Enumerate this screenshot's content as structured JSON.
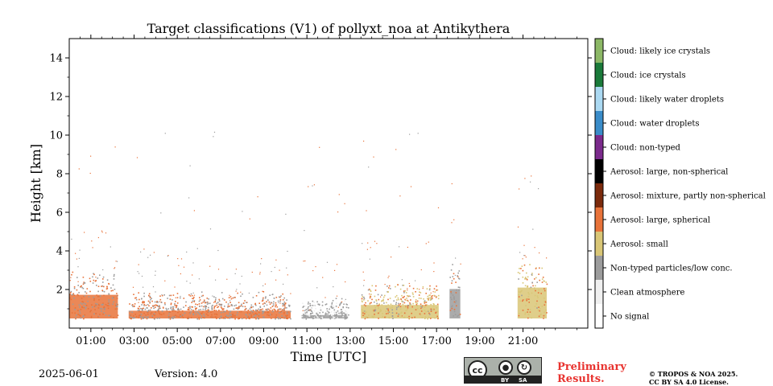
{
  "title": "Target classifications (V1) of pollyxt_noa at Antikythera",
  "footer": {
    "date": "2025-06-01",
    "version": "Version: 4.0",
    "preliminary": [
      "Preliminary",
      "Results."
    ],
    "copyright": [
      "© TROPOS & NOA 2025.",
      "CC BY SA 4.0 License."
    ],
    "license_badge": {
      "cc": "cc",
      "by": "BY",
      "sa": "SA"
    }
  },
  "chart_data": {
    "type": "heatmap",
    "title": "Target classifications (V1) of pollyxt_noa at Antikythera",
    "xlabel": "Time [UTC]",
    "ylabel": "Height [km]",
    "xlim_hours": [
      0,
      24
    ],
    "ylim_km": [
      0,
      15
    ],
    "xticks": [
      {
        "h": 1,
        "label": "01:00"
      },
      {
        "h": 3,
        "label": "03:00"
      },
      {
        "h": 5,
        "label": "05:00"
      },
      {
        "h": 7,
        "label": "07:00"
      },
      {
        "h": 9,
        "label": "09:00"
      },
      {
        "h": 11,
        "label": "11:00"
      },
      {
        "h": 13,
        "label": "13:00"
      },
      {
        "h": 15,
        "label": "15:00"
      },
      {
        "h": 17,
        "label": "17:00"
      },
      {
        "h": 19,
        "label": "19:00"
      },
      {
        "h": 21,
        "label": "21:00"
      }
    ],
    "yticks": [
      {
        "v": 2,
        "label": "2"
      },
      {
        "v": 4,
        "label": "4"
      },
      {
        "v": 6,
        "label": "6"
      },
      {
        "v": 8,
        "label": "8"
      },
      {
        "v": 10,
        "label": "10"
      },
      {
        "v": 12,
        "label": "12"
      },
      {
        "v": 14,
        "label": "14"
      }
    ],
    "classes": [
      {
        "value": 0,
        "label": "No signal",
        "color": "#ffffff"
      },
      {
        "value": 1,
        "label": "Clean atmosphere",
        "color": "#f0f0f0"
      },
      {
        "value": 2,
        "label": "Non-typed particles/low conc.",
        "color": "#9c9c9c"
      },
      {
        "value": 3,
        "label": "Aerosol: small",
        "color": "#d9c676"
      },
      {
        "value": 4,
        "label": "Aerosol: large, spherical",
        "color": "#e8733a"
      },
      {
        "value": 5,
        "label": "Aerosol: mixture, partly non-spherical",
        "color": "#7b2a0c"
      },
      {
        "value": 6,
        "label": "Aerosol: large, non-spherical",
        "color": "#000000"
      },
      {
        "value": 7,
        "label": "Cloud: non-typed",
        "color": "#7b2a8c"
      },
      {
        "value": 8,
        "label": "Cloud: water droplets",
        "color": "#3a8cc9"
      },
      {
        "value": 9,
        "label": "Cloud: likely water droplets",
        "color": "#abd9f2"
      },
      {
        "value": 10,
        "label": "Cloud: ice crystals",
        "color": "#1a7a3a"
      },
      {
        "value": 11,
        "label": "Cloud: likely ice crystals",
        "color": "#8cb866"
      }
    ],
    "segments": [
      {
        "start": 0.0,
        "end": 2.25,
        "top_km": 2.3,
        "dominant": "Aerosol: large, spherical",
        "secondary": "Non-typed particles/low conc."
      },
      {
        "start": 2.75,
        "end": 10.25,
        "top_km": 1.2,
        "dominant": "Aerosol: large, spherical",
        "secondary": "Non-typed particles/low conc."
      },
      {
        "start": 10.75,
        "end": 12.9,
        "top_km": 0.9,
        "dominant": "Non-typed particles/low conc.",
        "secondary": "Clean atmosphere"
      },
      {
        "start": 13.5,
        "end": 17.1,
        "top_km": 1.6,
        "dominant": "Aerosol: small",
        "secondary": "Aerosol: large, spherical"
      },
      {
        "start": 17.6,
        "end": 18.1,
        "top_km": 2.7,
        "dominant": "Non-typed particles/low conc.",
        "secondary": "Aerosol: large, spherical"
      },
      {
        "start": 20.75,
        "end": 22.1,
        "top_km": 2.8,
        "dominant": "Aerosol: small",
        "secondary": "Aerosol: large, spherical"
      }
    ],
    "colorbar_position": "right"
  }
}
